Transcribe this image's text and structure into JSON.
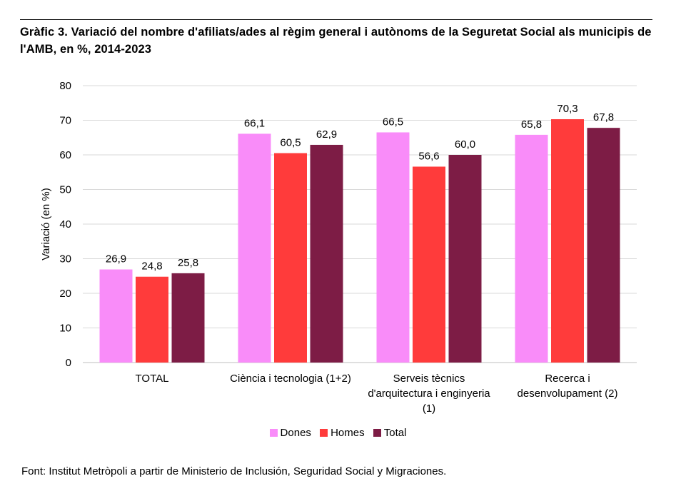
{
  "header": {
    "title": "Gràfic 3. Variació del nombre d'afiliats/ades al règim general i autònoms de la Seguretat Social als municipis de l'AMB, en %, 2014-2023"
  },
  "footer": {
    "source": "Font: Institut Metròpoli a partir de Ministerio de Inclusión, Seguridad Social y Migraciones."
  },
  "colors": {
    "dones": "#f98cf9",
    "homes": "#ff3b3b",
    "total": "#7d1c45",
    "grid": "#d9d9d9"
  },
  "chart_data": {
    "type": "bar",
    "title": "Gràfic 3. Variació del nombre d'afiliats/ades al règim general i autònoms de la Seguretat Social als municipis de l'AMB, en %, 2014-2023",
    "xlabel": "",
    "ylabel": "Variació (en %)",
    "ylim": [
      0,
      80
    ],
    "yticks": [
      "0",
      "10",
      "20",
      "30",
      "40",
      "50",
      "60",
      "70",
      "80"
    ],
    "grid": true,
    "legend_position": "bottom",
    "categories": [
      [
        "TOTAL"
      ],
      [
        "Ciència i tecnologia (1+2)"
      ],
      [
        "Serveis tècnics",
        "d'arquitectura i enginyeria",
        "(1)"
      ],
      [
        "Recerca i",
        "desenvolupament (2)"
      ]
    ],
    "series": [
      {
        "name": "Dones",
        "color": "#f98cf9",
        "values": [
          26.9,
          66.1,
          66.5,
          65.8
        ],
        "labels": [
          "26,9",
          "66,1",
          "66,5",
          "65,8"
        ]
      },
      {
        "name": "Homes",
        "color": "#ff3b3b",
        "values": [
          24.8,
          60.5,
          56.6,
          70.3
        ],
        "labels": [
          "24,8",
          "60,5",
          "56,6",
          "70,3"
        ]
      },
      {
        "name": "Total",
        "color": "#7d1c45",
        "values": [
          25.8,
          62.9,
          60.0,
          67.8
        ],
        "labels": [
          "25,8",
          "62,9",
          "60,0",
          "67,8"
        ]
      }
    ]
  }
}
